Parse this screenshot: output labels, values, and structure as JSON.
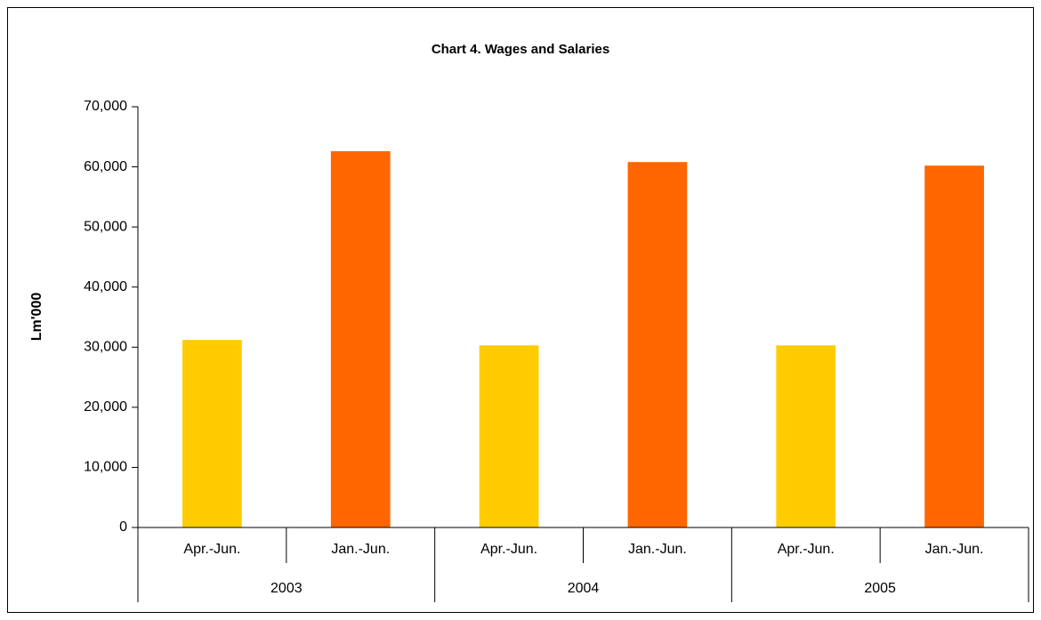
{
  "chart_data": {
    "type": "bar",
    "title": "Chart 4.  Wages and Salaries",
    "y_label": "Lm'000",
    "categories": [
      "Apr.-Jun.",
      "Jan.-Jun.",
      "Apr.-Jun.",
      "Jan.-Jun.",
      "Apr.-Jun.",
      "Jan.-Jun."
    ],
    "group_labels": [
      "2003",
      "2004",
      "2005"
    ],
    "values": [
      31200,
      62600,
      30300,
      60800,
      30300,
      60200
    ],
    "colors": [
      "#ffcc00",
      "#ff6600",
      "#ffcc00",
      "#ff6600",
      "#ffcc00",
      "#ff6600"
    ],
    "ylim": [
      0,
      70000
    ],
    "yticks": [
      0,
      {
        "value": 10000,
        "label": "10,000"
      },
      {
        "value": 20000,
        "label": "20,000"
      },
      {
        "value": 30000,
        "label": "30,000"
      },
      {
        "value": 40000,
        "label": "40,000"
      },
      {
        "value": 50000,
        "label": "50,000"
      },
      {
        "value": 60000,
        "label": "60,000"
      },
      {
        "value": 70000,
        "label": "70,000"
      }
    ],
    "grid": false
  }
}
